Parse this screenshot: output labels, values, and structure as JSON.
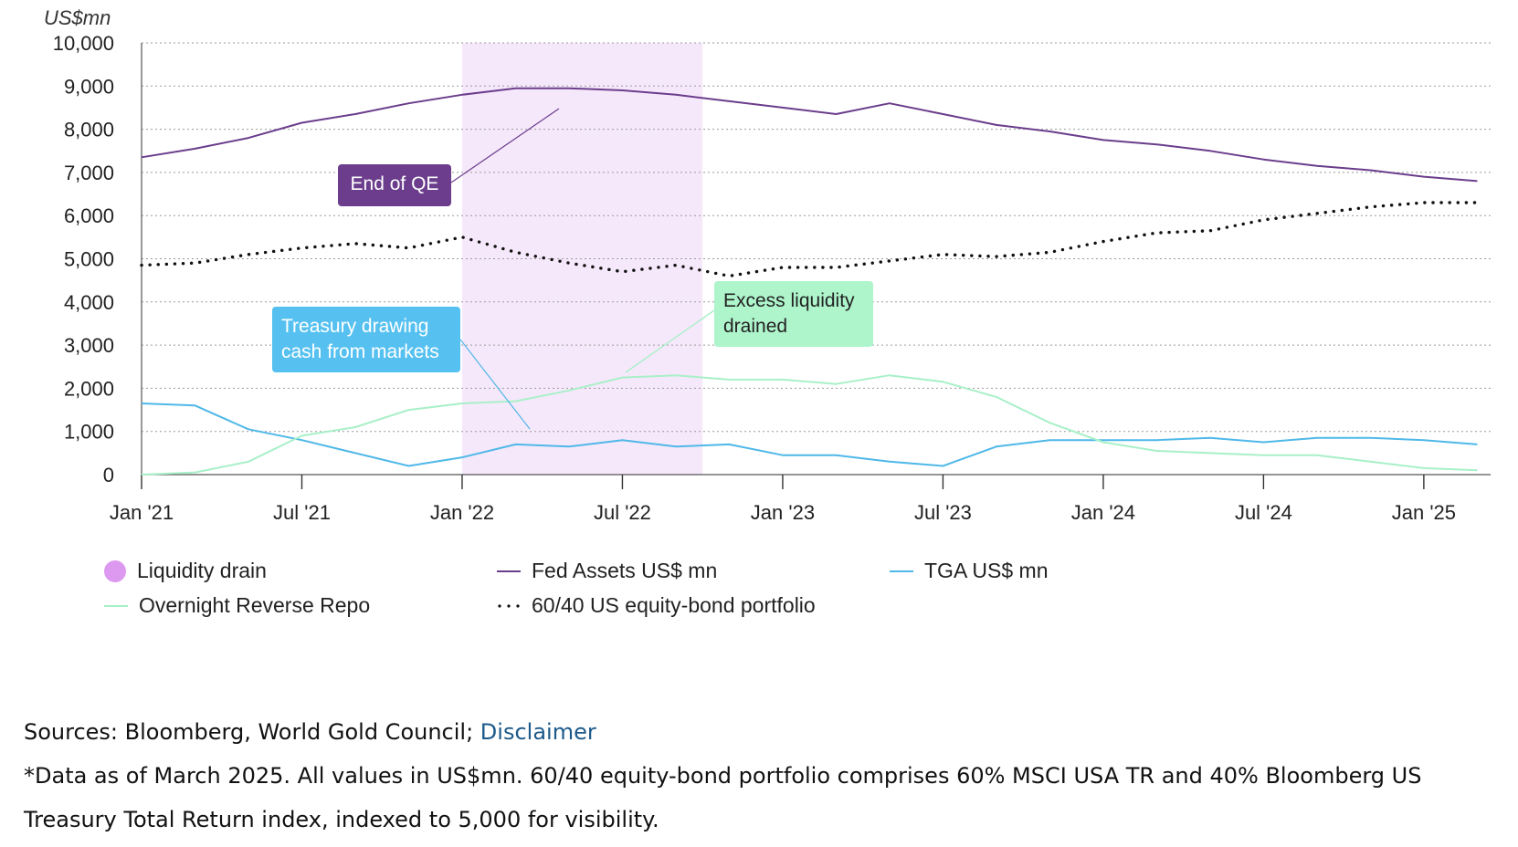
{
  "chart_data": {
    "type": "line",
    "ylabel": "US$mn",
    "ylim": [
      0,
      10000
    ],
    "yticks": [
      "10,000",
      "9,000",
      "8,000",
      "7,000",
      "6,000",
      "5,000",
      "4,000",
      "3,000",
      "2,000",
      "1,000",
      "0"
    ],
    "ytick_values": [
      10000,
      9000,
      8000,
      7000,
      6000,
      5000,
      4000,
      3000,
      2000,
      1000,
      0
    ],
    "xlim": [
      "2021-01",
      "2025-03"
    ],
    "xticks": [
      "Jan '21",
      "Jul '21",
      "Jan '22",
      "Jul '22",
      "Jan '23",
      "Jul '23",
      "Jan '24",
      "Jul '24",
      "Jan '25"
    ],
    "xtick_dates": [
      "2021-01",
      "2021-07",
      "2022-01",
      "2022-07",
      "2023-01",
      "2023-07",
      "2024-01",
      "2024-07",
      "2025-01"
    ],
    "grid": true,
    "legend_position": "bottom",
    "shaded_region": {
      "name": "Liquidity drain",
      "start": "2022-01",
      "end": "2022-10",
      "color": "#f6e8fb"
    },
    "x": [
      "2021-01",
      "2021-03",
      "2021-05",
      "2021-07",
      "2021-09",
      "2021-11",
      "2022-01",
      "2022-03",
      "2022-05",
      "2022-07",
      "2022-09",
      "2022-11",
      "2023-01",
      "2023-03",
      "2023-05",
      "2023-07",
      "2023-09",
      "2023-11",
      "2024-01",
      "2024-03",
      "2024-05",
      "2024-07",
      "2024-09",
      "2024-11",
      "2025-01",
      "2025-03"
    ],
    "series": [
      {
        "name": "Fed Assets US$ mn",
        "color": "#6b3d8c",
        "style": "solid",
        "values": [
          7350,
          7550,
          7800,
          8150,
          8350,
          8600,
          8800,
          8950,
          8950,
          8900,
          8800,
          8650,
          8500,
          8350,
          8600,
          8350,
          8100,
          7950,
          7750,
          7650,
          7500,
          7300,
          7150,
          7050,
          6900,
          6800
        ]
      },
      {
        "name": "TGA US$ mn",
        "color": "#4fb8e8",
        "style": "solid",
        "values": [
          1650,
          1600,
          1050,
          800,
          500,
          200,
          400,
          700,
          650,
          800,
          650,
          700,
          450,
          450,
          300,
          200,
          650,
          800,
          800,
          800,
          850,
          750,
          850,
          850,
          800,
          700
        ]
      },
      {
        "name": "Overnight Reverse Repo",
        "color": "#a8f0c8",
        "style": "solid",
        "values": [
          0,
          50,
          300,
          900,
          1100,
          1500,
          1650,
          1700,
          1950,
          2250,
          2300,
          2200,
          2200,
          2100,
          2300,
          2150,
          1800,
          1200,
          750,
          550,
          500,
          450,
          450,
          300,
          150,
          100
        ]
      },
      {
        "name": "60/40 US equity-bond portfolio",
        "color": "#111111",
        "style": "dotted",
        "values": [
          4850,
          4900,
          5100,
          5250,
          5350,
          5250,
          5500,
          5150,
          4900,
          4700,
          4850,
          4600,
          4800,
          4800,
          4950,
          5100,
          5050,
          5150,
          5400,
          5600,
          5650,
          5900,
          6050,
          6200,
          6300,
          6300
        ]
      }
    ],
    "annotations": [
      {
        "text": "End of QE",
        "bg": "#6b3d8c",
        "color": "#ffffff"
      },
      {
        "text": "Treasury drawing cash from markets",
        "lines": [
          "Treasury drawing",
          "cash from markets"
        ],
        "bg": "#56c1f0",
        "color": "#ffffff"
      },
      {
        "text": "Excess liquidity drained",
        "lines": [
          "Excess liquidity",
          "drained"
        ],
        "bg": "#aef5cc",
        "color": "#222222"
      }
    ]
  },
  "legend": [
    {
      "label": "Liquidity drain",
      "swatch": "dot",
      "color": "#dd99f0"
    },
    {
      "label": "Fed Assets US$ mn",
      "swatch": "line",
      "color": "#6b3d8c"
    },
    {
      "label": "TGA US$ mn",
      "swatch": "line",
      "color": "#4fb8e8"
    },
    {
      "label": "Overnight Reverse Repo",
      "swatch": "line",
      "color": "#a8f0c8"
    },
    {
      "label": "60/40 US equity-bond portfolio",
      "swatch": "dots",
      "color": "#111111"
    }
  ],
  "notes": {
    "sources_prefix": "Sources: Bloomberg, World Gold Council; ",
    "sources_link": "Disclaimer",
    "footnote": "*Data as of March 2025. All values in US$mn. 60/40 equity-bond portfolio comprises 60% MSCI USA TR and 40% Bloomberg US Treasury Total Return index, indexed to 5,000 for visibility."
  }
}
